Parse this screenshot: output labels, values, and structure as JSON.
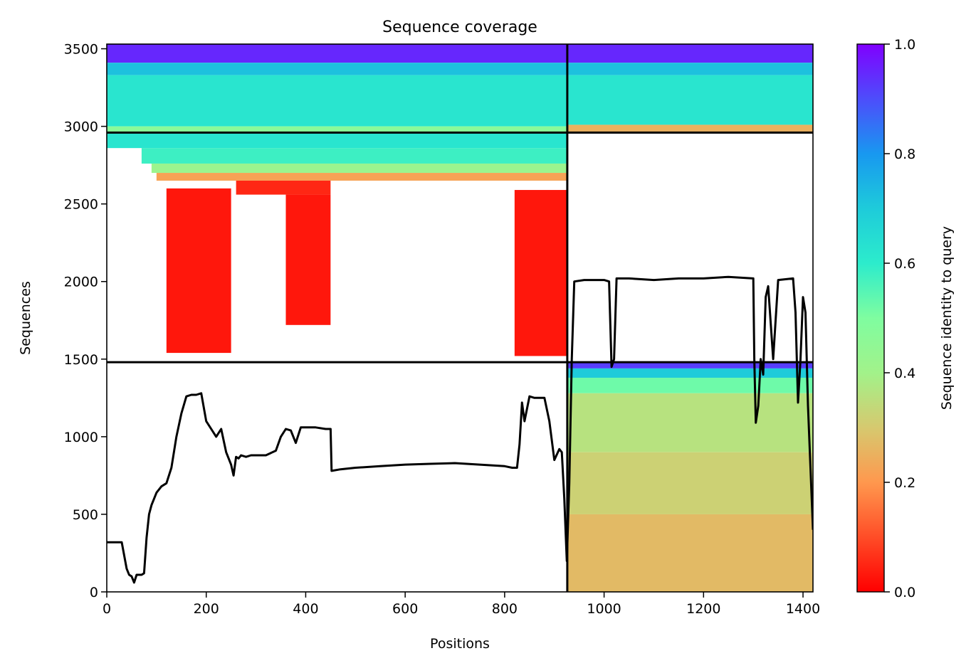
{
  "chart_data": {
    "type": "heatmap",
    "title": "Sequence coverage",
    "xlabel": "Positions",
    "ylabel": "Sequences",
    "xlim": [
      0,
      1420
    ],
    "ylim": [
      0,
      3530
    ],
    "xticks": [
      0,
      200,
      400,
      600,
      800,
      1000,
      1200,
      1400
    ],
    "yticks": [
      0,
      500,
      1000,
      1500,
      2000,
      2500,
      3000,
      3500
    ],
    "grid": false,
    "colorbar": {
      "label": "Sequence identity to query",
      "range": [
        0,
        1
      ],
      "ticks": [
        0.0,
        0.2,
        0.4,
        0.6,
        0.8,
        1.0
      ],
      "tick_labels": [
        "0.0",
        "0.2",
        "0.4",
        "0.6",
        "0.8",
        "1.0"
      ],
      "colormap": "rainbow_r"
    },
    "chain_boundaries": {
      "x": [
        926
      ],
      "y": [
        1480,
        2960
      ]
    },
    "blocks": [
      {
        "x": [
          0,
          926
        ],
        "y": [
          3410,
          3530
        ],
        "identity": 0.95
      },
      {
        "x": [
          0,
          926
        ],
        "y": [
          3330,
          3410
        ],
        "identity": 0.72
      },
      {
        "x": [
          0,
          926
        ],
        "y": [
          3000,
          3330
        ],
        "identity": 0.62
      },
      {
        "x": [
          0,
          926
        ],
        "y": [
          2960,
          3000
        ],
        "identity": 0.47
      },
      {
        "x": [
          926,
          1420
        ],
        "y": [
          3410,
          3530
        ],
        "identity": 0.95
      },
      {
        "x": [
          926,
          1420
        ],
        "y": [
          3330,
          3410
        ],
        "identity": 0.72
      },
      {
        "x": [
          926,
          1420
        ],
        "y": [
          3010,
          3330
        ],
        "identity": 0.62
      },
      {
        "x": [
          926,
          1420
        ],
        "y": [
          2960,
          3010
        ],
        "identity": 0.25
      },
      {
        "x": [
          0,
          926
        ],
        "y": [
          2860,
          2960
        ],
        "identity": 0.62
      },
      {
        "x": [
          70,
          926
        ],
        "y": [
          2760,
          2860
        ],
        "identity": 0.58
      },
      {
        "x": [
          90,
          926
        ],
        "y": [
          2700,
          2760
        ],
        "identity": 0.42
      },
      {
        "x": [
          100,
          926
        ],
        "y": [
          2650,
          2700
        ],
        "identity": 0.22
      },
      {
        "x": [
          260,
          450
        ],
        "y": [
          2560,
          2650
        ],
        "identity": 0.05
      },
      {
        "x": [
          820,
          926
        ],
        "y": [
          1520,
          2590
        ],
        "identity": 0.03
      },
      {
        "x": [
          120,
          250
        ],
        "y": [
          1540,
          2600
        ],
        "identity": 0.03
      },
      {
        "x": [
          360,
          450
        ],
        "y": [
          1720,
          2560
        ],
        "identity": 0.03
      },
      {
        "x": [
          926,
          1420
        ],
        "y": [
          1440,
          1480
        ],
        "identity": 0.92
      },
      {
        "x": [
          926,
          1420
        ],
        "y": [
          1380,
          1440
        ],
        "identity": 0.7
      },
      {
        "x": [
          926,
          1420
        ],
        "y": [
          1280,
          1380
        ],
        "identity": 0.52
      },
      {
        "x": [
          926,
          1420
        ],
        "y": [
          900,
          1280
        ],
        "identity": 0.36
      },
      {
        "x": [
          926,
          1420
        ],
        "y": [
          500,
          900
        ],
        "identity": 0.32
      },
      {
        "x": [
          926,
          1420
        ],
        "y": [
          0,
          500
        ],
        "identity": 0.27
      }
    ],
    "coverage_line": {
      "x": [
        0,
        20,
        20,
        30,
        40,
        45,
        50,
        55,
        60,
        65,
        70,
        75,
        80,
        85,
        90,
        100,
        110,
        120,
        130,
        140,
        150,
        160,
        170,
        180,
        190,
        200,
        210,
        220,
        230,
        240,
        250,
        255,
        260,
        265,
        270,
        280,
        290,
        300,
        320,
        340,
        350,
        360,
        370,
        380,
        390,
        400,
        420,
        440,
        450,
        452,
        470,
        500,
        550,
        600,
        650,
        700,
        750,
        800,
        815,
        825,
        830,
        835,
        840,
        850,
        860,
        870,
        880,
        890,
        900,
        910,
        915,
        920,
        925,
        926,
        930,
        935,
        940,
        960,
        990,
        1000,
        1010,
        1015,
        1020,
        1025,
        1030,
        1050,
        1100,
        1150,
        1200,
        1250,
        1300,
        1302,
        1305,
        1310,
        1315,
        1320,
        1325,
        1330,
        1340,
        1350,
        1380,
        1385,
        1390,
        1395,
        1400,
        1405,
        1410,
        1415,
        1420
      ],
      "y": [
        320,
        320,
        320,
        320,
        150,
        110,
        100,
        60,
        110,
        110,
        110,
        120,
        350,
        500,
        560,
        640,
        680,
        700,
        800,
        1000,
        1150,
        1260,
        1270,
        1270,
        1280,
        1100,
        1050,
        1000,
        1050,
        900,
        820,
        750,
        870,
        860,
        880,
        870,
        880,
        880,
        880,
        910,
        1000,
        1050,
        1040,
        960,
        1060,
        1060,
        1060,
        1050,
        1050,
        780,
        790,
        800,
        810,
        820,
        825,
        830,
        820,
        810,
        800,
        800,
        950,
        1220,
        1100,
        1260,
        1250,
        1250,
        1250,
        1100,
        850,
        920,
        900,
        600,
        200,
        300,
        700,
        1500,
        2000,
        2010,
        2010,
        2010,
        2000,
        1450,
        1500,
        2020,
        2020,
        2020,
        2010,
        2020,
        2020,
        2030,
        2020,
        1500,
        1090,
        1200,
        1500,
        1400,
        1900,
        1970,
        1500,
        2010,
        2020,
        1800,
        1220,
        1500,
        1900,
        1800,
        1200,
        800,
        400
      ]
    }
  }
}
